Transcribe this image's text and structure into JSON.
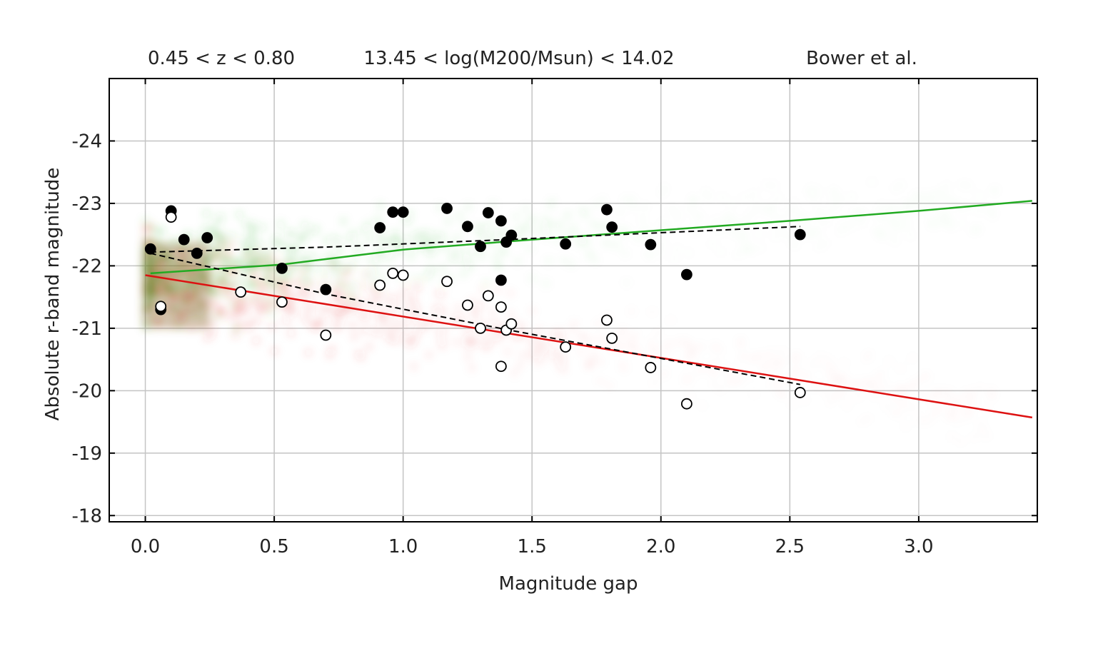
{
  "header": {
    "redshift_range": "0.45 < z < 0.80",
    "mass_range": "13.45 < log(M200/Msun) < 14.02",
    "model": "Bower et al."
  },
  "chart_data": {
    "type": "scatter",
    "xlabel": "Magnitude gap",
    "ylabel": "Absolute r-band magnitude",
    "xlim": [
      -0.14,
      3.46
    ],
    "ylim": [
      -17.9,
      -25.0
    ],
    "xticks": [
      {
        "value": 0.0,
        "label": "0.0"
      },
      {
        "value": 0.5,
        "label": "0.5"
      },
      {
        "value": 1.0,
        "label": "1.0"
      },
      {
        "value": 1.5,
        "label": "1.5"
      },
      {
        "value": 2.0,
        "label": "2.0"
      },
      {
        "value": 2.5,
        "label": "2.5"
      },
      {
        "value": 3.0,
        "label": "3.0"
      }
    ],
    "yticks": [
      {
        "value": -24,
        "label": "-24"
      },
      {
        "value": -23,
        "label": "-23"
      },
      {
        "value": -22,
        "label": "-22"
      },
      {
        "value": -21,
        "label": "-21"
      },
      {
        "value": -20,
        "label": "-20"
      },
      {
        "value": -19,
        "label": "-19"
      },
      {
        "value": -18,
        "label": "-18"
      }
    ],
    "grid": true,
    "colors": {
      "bcg_fit": "#22aa22",
      "second_fit": "#dd1111",
      "bcg_cloud": "#3cb43c",
      "second_cloud": "#e03c3c",
      "observed": "#000000"
    },
    "series": [
      {
        "key": "bcg_observed",
        "marker": "filled",
        "x": [
          0.02,
          0.1,
          0.15,
          0.24,
          0.06,
          0.2,
          0.53,
          0.7,
          0.91,
          0.96,
          1.0,
          1.17,
          1.25,
          1.33,
          1.38,
          1.3,
          1.42,
          1.4,
          1.38,
          1.63,
          1.79,
          1.81,
          1.96,
          2.1,
          2.54
        ],
        "y": [
          -22.27,
          -22.88,
          -22.42,
          -22.45,
          -21.3,
          -22.2,
          -21.96,
          -21.62,
          -22.61,
          -22.86,
          -22.86,
          -22.92,
          -22.63,
          -22.85,
          -22.72,
          -22.31,
          -22.49,
          -22.38,
          -21.77,
          -22.35,
          -22.9,
          -22.62,
          -22.34,
          -21.86,
          -22.5
        ]
      },
      {
        "key": "second_observed",
        "marker": "open",
        "x": [
          0.1,
          0.06,
          0.37,
          0.53,
          0.7,
          0.91,
          0.96,
          1.0,
          1.17,
          1.25,
          1.3,
          1.33,
          1.38,
          1.4,
          1.42,
          1.38,
          1.63,
          1.79,
          1.81,
          1.96,
          2.1,
          2.54
        ],
        "y": [
          -22.78,
          -21.35,
          -21.58,
          -21.42,
          -20.89,
          -21.69,
          -21.88,
          -21.85,
          -21.75,
          -21.37,
          -21.0,
          -21.52,
          -21.34,
          -20.97,
          -21.07,
          -20.39,
          -20.7,
          -21.13,
          -20.84,
          -20.37,
          -19.79,
          -19.97
        ]
      }
    ],
    "fit_lines": [
      {
        "key": "bcg_fit",
        "style": "solid",
        "x": [
          0.02,
          0.53,
          1.0,
          1.5,
          2.0,
          2.5,
          3.0,
          3.44
        ],
        "y": [
          -21.88,
          -22.02,
          -22.26,
          -22.42,
          -22.57,
          -22.72,
          -22.88,
          -23.04
        ]
      },
      {
        "key": "second_fit",
        "style": "solid",
        "x": [
          0.0,
          3.44
        ],
        "y": [
          -21.85,
          -19.57
        ]
      },
      {
        "key": "bcg_obs_trend",
        "style": "dashed",
        "x": [
          0.02,
          0.7,
          1.4,
          2.54
        ],
        "y": [
          -22.22,
          -22.3,
          -22.42,
          -22.63
        ]
      },
      {
        "key": "second_obs_trend",
        "style": "dashed",
        "x": [
          0.02,
          0.7,
          1.4,
          2.54
        ],
        "y": [
          -22.2,
          -21.55,
          -20.98,
          -20.1
        ]
      }
    ]
  }
}
